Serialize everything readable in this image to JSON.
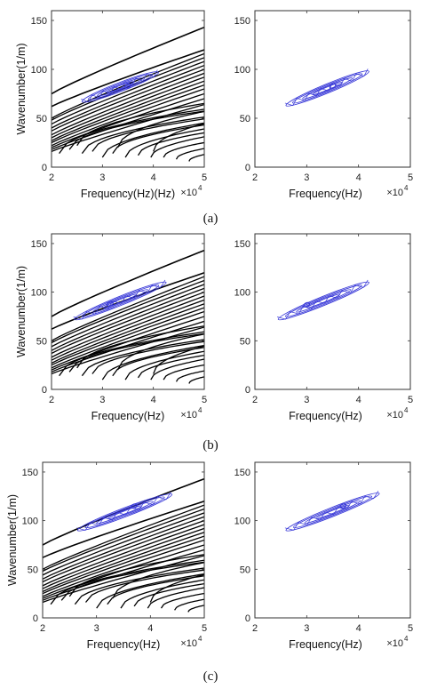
{
  "chart_data": [
    {
      "type": "line",
      "panel": "a",
      "side": "left",
      "xlabel": "Frequency(Hz)(Hz)",
      "ylabel": "Wavenumber(1/m)",
      "xlim": [
        2,
        5
      ],
      "ylim": [
        0,
        160
      ],
      "x_ticks": [
        2,
        3,
        4,
        5
      ],
      "y_ticks": [
        0,
        50,
        100,
        150
      ],
      "x_multiplier": {
        "base": "×10",
        "exp": "4"
      },
      "curves_color": "#000000",
      "contour_color": "#3a3ad8",
      "contour": {
        "x0": 2.6,
        "y0": 67,
        "x1": 4.1,
        "y1": 97,
        "peak": [
          3.5,
          83
        ]
      }
    },
    {
      "type": "line",
      "panel": "a",
      "side": "right",
      "xlabel": "Frequency(Hz)",
      "ylabel": "",
      "xlim": [
        2,
        5
      ],
      "ylim": [
        0,
        160
      ],
      "x_ticks": [
        2,
        3,
        4,
        5
      ],
      "y_ticks": [
        0,
        50,
        100,
        150
      ],
      "x_multiplier": {
        "base": "×10",
        "exp": "4"
      },
      "contour_color": "#3a3ad8",
      "contour": {
        "x0": 2.6,
        "y0": 63,
        "x1": 4.2,
        "y1": 98,
        "peak": [
          3.5,
          83
        ]
      }
    },
    {
      "type": "line",
      "panel": "b",
      "side": "left",
      "xlabel": "Frequency(Hz)",
      "ylabel": "Wavenumber(1/m)",
      "xlim": [
        2,
        5
      ],
      "ylim": [
        0,
        160
      ],
      "x_ticks": [
        2,
        3,
        4,
        5
      ],
      "y_ticks": [
        0,
        50,
        100,
        150
      ],
      "x_multiplier": {
        "base": "×10",
        "exp": "4"
      },
      "curves_color": "#000000",
      "contour_color": "#3a3ad8",
      "contour": {
        "x0": 2.45,
        "y0": 72,
        "x1": 4.25,
        "y1": 110,
        "peak": [
          3.15,
          88
        ]
      }
    },
    {
      "type": "line",
      "panel": "b",
      "side": "right",
      "xlabel": "Frequency(Hz)",
      "ylabel": "",
      "xlim": [
        2,
        5
      ],
      "ylim": [
        0,
        160
      ],
      "x_ticks": [
        2,
        3,
        4,
        5
      ],
      "y_ticks": [
        0,
        50,
        100,
        150
      ],
      "x_multiplier": {
        "base": "×10",
        "exp": "4"
      },
      "contour_color": "#3a3ad8",
      "contour": {
        "x0": 2.45,
        "y0": 72,
        "x1": 4.2,
        "y1": 110,
        "peak": [
          3.0,
          87
        ]
      }
    },
    {
      "type": "line",
      "panel": "c",
      "side": "left",
      "xlabel": "Frequency(Hz)",
      "ylabel": "Wavenumber(1/m)",
      "xlim": [
        2,
        5
      ],
      "ylim": [
        0,
        160
      ],
      "x_ticks": [
        2,
        3,
        4,
        5
      ],
      "y_ticks": [
        0,
        50,
        100,
        150
      ],
      "x_multiplier": {
        "base": "×10",
        "exp": "4"
      },
      "curves_color": "#000000",
      "contour_color": "#3a3ad8",
      "contour": {
        "x0": 2.65,
        "y0": 90,
        "x1": 4.4,
        "y1": 127,
        "peak": [
          3.7,
          115
        ]
      }
    },
    {
      "type": "line",
      "panel": "c",
      "side": "right",
      "xlabel": "Frequency(Hz)",
      "ylabel": "",
      "xlim": [
        2,
        5
      ],
      "ylim": [
        0,
        160
      ],
      "x_ticks": [
        2,
        3,
        4,
        5
      ],
      "y_ticks": [
        0,
        50,
        100,
        150
      ],
      "x_multiplier": {
        "base": "×10",
        "exp": "4"
      },
      "contour_color": "#3a3ad8",
      "contour": {
        "x0": 2.6,
        "y0": 90,
        "x1": 4.4,
        "y1": 128,
        "peak": [
          3.7,
          115
        ]
      }
    }
  ],
  "labels": {
    "a": "(a)",
    "b": "(b)",
    "c": "(c)"
  }
}
